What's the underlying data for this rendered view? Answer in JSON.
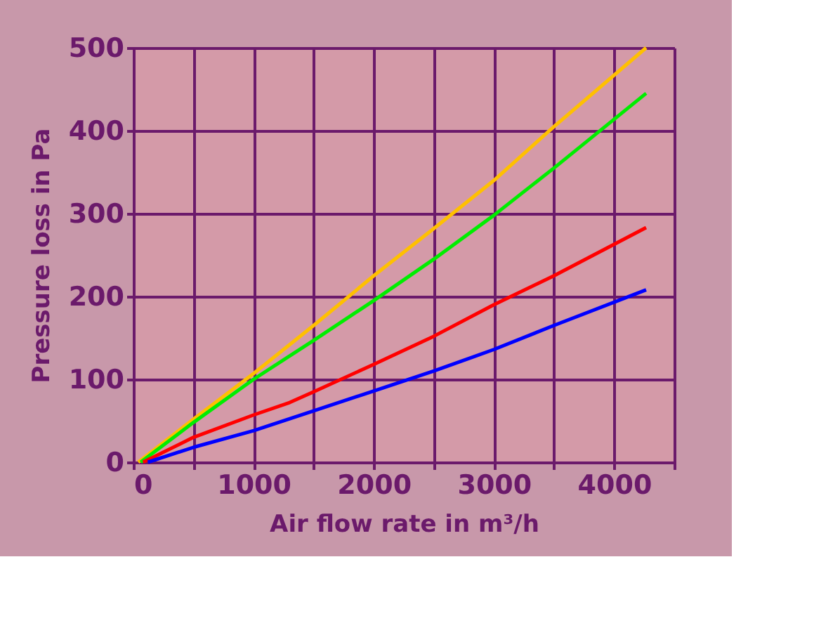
{
  "chart_data": {
    "type": "line",
    "xlabel": "Air flow rate in m³/h",
    "ylabel": "Pressure loss in Pa",
    "xlim": [
      0,
      4500
    ],
    "ylim": [
      0,
      500
    ],
    "xticks": [
      0,
      {
        "value": 500,
        "label": null
      },
      1000,
      {
        "value": 1500,
        "label": null
      },
      2000,
      {
        "value": 2500,
        "label": null
      },
      3000,
      {
        "value": 3500,
        "label": null
      },
      4000,
      {
        "value": 4500,
        "label": null
      }
    ],
    "yticks": [
      0,
      100,
      200,
      300,
      400,
      500
    ],
    "grid": true,
    "marker": "none",
    "line_style": "solid",
    "series": [
      {
        "color": "#ffc000",
        "x": [
          40,
          500,
          1000,
          1500,
          2000,
          2500,
          3000,
          3500,
          4266
        ],
        "values": [
          0,
          52,
          107,
          165,
          225,
          282,
          340,
          405,
          500
        ]
      },
      {
        "color": "#00ee00",
        "x": [
          60,
          500,
          1000,
          1500,
          2000,
          2500,
          3000,
          3500,
          4266
        ],
        "values": [
          0,
          48,
          100,
          147,
          195,
          245,
          298,
          355,
          445
        ]
      },
      {
        "color": "#ff0000",
        "x": [
          80,
          500,
          1000,
          1300,
          1500,
          2000,
          2500,
          3000,
          3500,
          4266
        ],
        "values": [
          0,
          30,
          57,
          72,
          85,
          118,
          152,
          190,
          225,
          283
        ]
      },
      {
        "color": "#0000ff",
        "x": [
          120,
          500,
          1000,
          1500,
          2000,
          2500,
          3000,
          3500,
          4266
        ],
        "values": [
          0,
          18,
          38,
          62,
          86,
          110,
          136,
          165,
          208
        ]
      }
    ]
  }
}
